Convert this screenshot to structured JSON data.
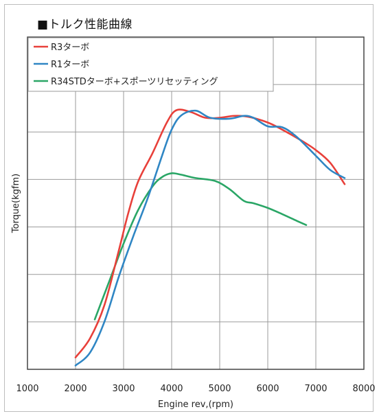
{
  "chart_data": {
    "type": "line",
    "title": "■トルク性能曲線",
    "xlabel": "Engine rev,(rpm)",
    "ylabel": "Torque(kgfm)",
    "xlim": [
      1000,
      8000
    ],
    "ylim": [
      0,
      7
    ],
    "xticks": [
      1000,
      2000,
      3000,
      4000,
      5000,
      6000,
      7000,
      8000
    ],
    "ytick_labels_visible": false,
    "grid": true,
    "legend": "top-left",
    "series": [
      {
        "name": "R3ターボ",
        "color": "#e8403a",
        "x": [
          2000,
          2300,
          2600,
          2900,
          3100,
          3300,
          3600,
          3900,
          4100,
          4400,
          4700,
          5000,
          5300,
          5600,
          6000,
          6300,
          6700,
          7000,
          7300,
          7600
        ],
        "y": [
          0.25,
          0.65,
          1.35,
          2.5,
          3.3,
          3.95,
          4.55,
          5.2,
          5.46,
          5.42,
          5.3,
          5.3,
          5.34,
          5.32,
          5.2,
          5.05,
          4.82,
          4.62,
          4.35,
          3.9
        ]
      },
      {
        "name": "R1ターボ",
        "color": "#2f86c4",
        "x": [
          2000,
          2300,
          2600,
          2900,
          3200,
          3500,
          3800,
          4000,
          4200,
          4500,
          4800,
          5200,
          5500,
          5700,
          6000,
          6300,
          6600,
          7000,
          7300,
          7600
        ],
        "y": [
          0.08,
          0.35,
          1.0,
          1.95,
          2.8,
          3.6,
          4.5,
          5.05,
          5.35,
          5.45,
          5.3,
          5.28,
          5.34,
          5.3,
          5.12,
          5.1,
          4.9,
          4.5,
          4.2,
          4.03
        ]
      },
      {
        "name": "R34STDターボ+スポーツリセッティング",
        "color": "#2aa666",
        "x": [
          2400,
          2700,
          3000,
          3300,
          3600,
          3800,
          4000,
          4200,
          4500,
          4900,
          5200,
          5500,
          5700,
          6000,
          6300,
          6600,
          6800
        ],
        "y": [
          1.05,
          1.85,
          2.65,
          3.35,
          3.85,
          4.05,
          4.13,
          4.1,
          4.03,
          3.97,
          3.8,
          3.55,
          3.5,
          3.4,
          3.27,
          3.13,
          3.04
        ]
      }
    ]
  }
}
